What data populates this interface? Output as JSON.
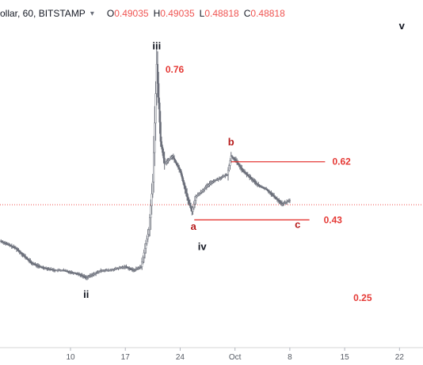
{
  "header": {
    "symbol": "ollar, 60, BITSTAMP",
    "o_key": "O",
    "o_val": "0.49035",
    "h_key": "H",
    "h_val": "0.49035",
    "l_key": "L",
    "l_val": "0.48818",
    "c_key": "C",
    "c_val": "0.48818"
  },
  "colors": {
    "candle": "#6b6f7a",
    "annotation_red": "#e53935",
    "wave_label": "#131722",
    "price_line": "#ef5350"
  },
  "chart_data": {
    "type": "line",
    "title": "",
    "xlabel": "",
    "ylabel": "",
    "x_ticks": [
      "10",
      "17",
      "24",
      "Oct",
      "8",
      "15",
      "22"
    ],
    "x_tick_days": [
      10,
      17,
      24,
      31,
      38,
      45,
      52
    ],
    "xlim": [
      1,
      55
    ],
    "ylim": [
      0.1,
      0.98
    ],
    "grid": false,
    "legend": "none",
    "series": [
      {
        "x": [
          1,
          2,
          3,
          4,
          5,
          6,
          7,
          8,
          9,
          10,
          11,
          12,
          13,
          14,
          15,
          16,
          17,
          18,
          19,
          20,
          20.5,
          21,
          21.5,
          22,
          23,
          24,
          25,
          25.5,
          26,
          27,
          28,
          29,
          30,
          30.5,
          31,
          32,
          33,
          34,
          35,
          36,
          36.5,
          37,
          38
        ],
        "y": [
          0.39,
          0.38,
          0.37,
          0.35,
          0.33,
          0.32,
          0.315,
          0.31,
          0.31,
          0.305,
          0.3,
          0.29,
          0.3,
          0.31,
          0.31,
          0.315,
          0.32,
          0.31,
          0.32,
          0.42,
          0.55,
          0.87,
          0.66,
          0.6,
          0.62,
          0.58,
          0.5,
          0.47,
          0.51,
          0.53,
          0.55,
          0.56,
          0.57,
          0.62,
          0.61,
          0.58,
          0.56,
          0.54,
          0.53,
          0.51,
          0.5,
          0.49,
          0.5
        ]
      }
    ],
    "wave_labels": [
      {
        "label": "ii",
        "x": 12,
        "y": 0.235
      },
      {
        "label": "iii",
        "x": 21,
        "y": 0.91
      },
      {
        "label": "a",
        "x": 25.7,
        "y": 0.42
      },
      {
        "label": "iv",
        "x": 26.8,
        "y": 0.365
      },
      {
        "label": "b",
        "x": 30.5,
        "y": 0.65
      },
      {
        "label": "c",
        "x": 39,
        "y": 0.425
      },
      {
        "label": "v",
        "x": 52.3,
        "y": 0.965
      }
    ],
    "level_lines": [
      {
        "label": "0.62",
        "from": 30.5,
        "to": 42.5,
        "y": 0.605
      },
      {
        "label": "0.43",
        "from": 25.8,
        "to": 40.5,
        "y": 0.447
      }
    ],
    "level_labels": [
      {
        "label": "0.76",
        "x": 23.3,
        "y": 0.855
      },
      {
        "label": "0.62",
        "x": 44.6,
        "y": 0.605
      },
      {
        "label": "0.43",
        "x": 43.5,
        "y": 0.447
      },
      {
        "label": "0.25",
        "x": 47.3,
        "y": 0.235
      }
    ],
    "current_price": 0.48818
  }
}
